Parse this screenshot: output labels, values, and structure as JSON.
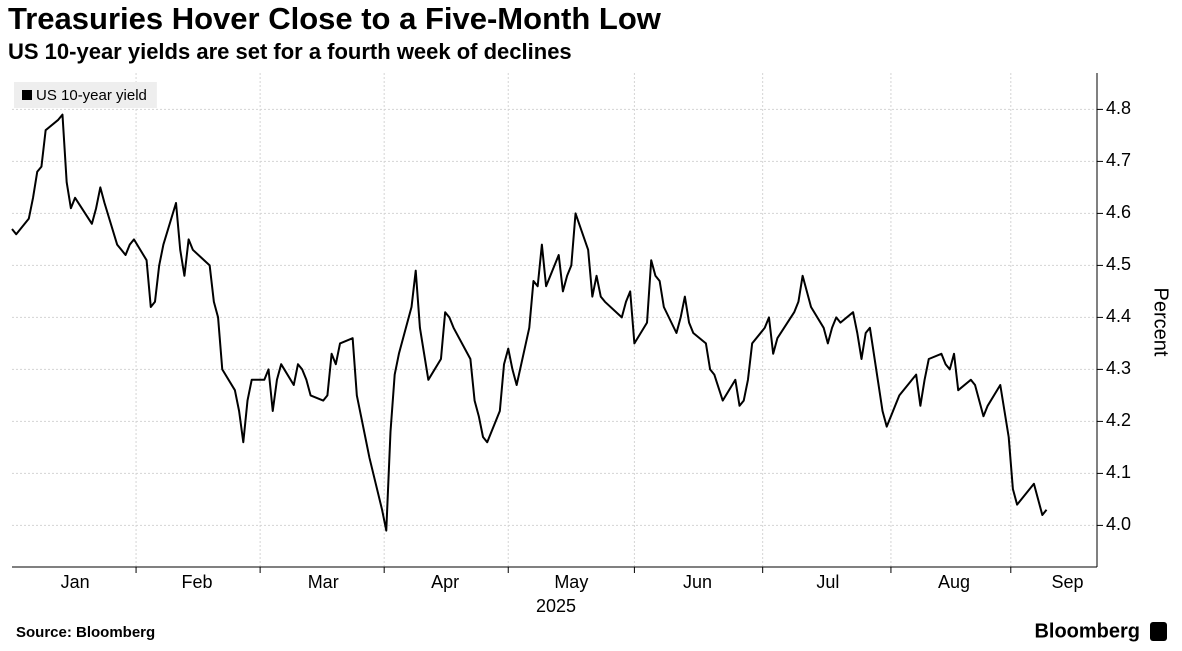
{
  "chart_data": {
    "type": "line",
    "title": "Treasuries Hover Close to a Five-Month Low",
    "subtitle": "US 10-year yields are set for a fourth week of declines",
    "xlabel": "2025",
    "ylabel": "Percent",
    "source": "Source: Bloomberg",
    "brand": "Bloomberg",
    "x": [
      2,
      3,
      6,
      7,
      8,
      9,
      10,
      13,
      14,
      15,
      16,
      17,
      21,
      22,
      23,
      24,
      27,
      28,
      29,
      30,
      31,
      34,
      35,
      36,
      37,
      38,
      41,
      42,
      43,
      44,
      45,
      49,
      50,
      51,
      52,
      55,
      56,
      57,
      58,
      59,
      62,
      63,
      64,
      65,
      66,
      69,
      70,
      71,
      72,
      73,
      76,
      77,
      78,
      79,
      80,
      83,
      84,
      85,
      86,
      87,
      90,
      91,
      92,
      93,
      94,
      97,
      98,
      99,
      100,
      101,
      104,
      105,
      106,
      107,
      111,
      112,
      113,
      114,
      115,
      118,
      119,
      120,
      121,
      122,
      125,
      126,
      127,
      128,
      129,
      132,
      133,
      134,
      135,
      136,
      139,
      140,
      141,
      142,
      143,
      147,
      148,
      149,
      150,
      153,
      154,
      155,
      156,
      157,
      160,
      161,
      162,
      163,
      164,
      167,
      168,
      169,
      171,
      174,
      175,
      176,
      177,
      178,
      181,
      182,
      183,
      184,
      188,
      189,
      190,
      191,
      192,
      195,
      196,
      197,
      198,
      199,
      202,
      203,
      204,
      205,
      206,
      209,
      210,
      211,
      212,
      213,
      216,
      217,
      218,
      219,
      220,
      223,
      224,
      225,
      226,
      227,
      230,
      231,
      232,
      233,
      234,
      237,
      238,
      239,
      240,
      241,
      245,
      246,
      247,
      248
    ],
    "series": [
      {
        "name": "US 10-year yield",
        "color": "#000000",
        "values": [
          4.57,
          4.56,
          4.59,
          4.63,
          4.68,
          4.69,
          4.76,
          4.78,
          4.79,
          4.66,
          4.61,
          4.63,
          4.58,
          4.61,
          4.65,
          4.62,
          4.54,
          4.53,
          4.52,
          4.54,
          4.55,
          4.51,
          4.42,
          4.43,
          4.5,
          4.54,
          4.62,
          4.53,
          4.48,
          4.55,
          4.53,
          4.5,
          4.43,
          4.4,
          4.3,
          4.26,
          4.22,
          4.16,
          4.24,
          4.28,
          4.28,
          4.3,
          4.22,
          4.28,
          4.31,
          4.27,
          4.31,
          4.3,
          4.28,
          4.25,
          4.24,
          4.25,
          4.33,
          4.31,
          4.35,
          4.36,
          4.25,
          4.21,
          4.17,
          4.13,
          4.03,
          3.99,
          4.18,
          4.29,
          4.33,
          4.42,
          4.49,
          4.38,
          4.33,
          4.28,
          4.32,
          4.41,
          4.4,
          4.38,
          4.32,
          4.24,
          4.21,
          4.17,
          4.16,
          4.22,
          4.31,
          4.34,
          4.3,
          4.27,
          4.38,
          4.47,
          4.46,
          4.54,
          4.46,
          4.52,
          4.45,
          4.48,
          4.5,
          4.6,
          4.53,
          4.44,
          4.48,
          4.44,
          4.43,
          4.4,
          4.43,
          4.45,
          4.35,
          4.39,
          4.51,
          4.48,
          4.47,
          4.42,
          4.37,
          4.4,
          4.44,
          4.39,
          4.37,
          4.35,
          4.3,
          4.29,
          4.24,
          4.28,
          4.23,
          4.24,
          4.28,
          4.35,
          4.38,
          4.4,
          4.33,
          4.36,
          4.41,
          4.43,
          4.48,
          4.45,
          4.42,
          4.38,
          4.35,
          4.38,
          4.4,
          4.39,
          4.41,
          4.37,
          4.32,
          4.37,
          4.38,
          4.22,
          4.19,
          4.21,
          4.23,
          4.25,
          4.28,
          4.29,
          4.23,
          4.28,
          4.32,
          4.33,
          4.31,
          4.3,
          4.33,
          4.26,
          4.28,
          4.27,
          4.24,
          4.21,
          4.23,
          4.27,
          4.22,
          4.17,
          4.07,
          4.04,
          4.08,
          4.05,
          4.02,
          4.03
        ]
      }
    ],
    "xlim": [
      2,
      260
    ],
    "xticks": [
      {
        "value": 17,
        "label": "Jan"
      },
      {
        "value": 46,
        "label": "Feb"
      },
      {
        "value": 76,
        "label": "Mar"
      },
      {
        "value": 105,
        "label": "Apr"
      },
      {
        "value": 135,
        "label": "May"
      },
      {
        "value": 165,
        "label": "Jun"
      },
      {
        "value": 196,
        "label": "Jul"
      },
      {
        "value": 226,
        "label": "Aug"
      },
      {
        "value": 253,
        "label": "Sep"
      }
    ],
    "ylim": [
      3.92,
      4.87
    ],
    "yticks": [
      {
        "value": 4,
        "label": "4.0"
      },
      4.1,
      4.2,
      4.3,
      4.4,
      4.5,
      4.6,
      4.7,
      4.8
    ],
    "grid": true,
    "legend": "upper left"
  }
}
